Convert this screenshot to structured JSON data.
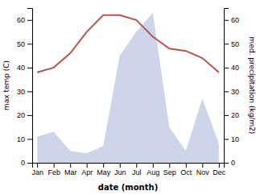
{
  "chart_data": {
    "type": "line",
    "xlabel": "date (month)",
    "ylabel": "max temp (C)",
    "y2label": "med. precipitation (kg/m2)",
    "categories": [
      "Jan",
      "Feb",
      "Mar",
      "Apr",
      "May",
      "Jun",
      "Jul",
      "Aug",
      "Sep",
      "Oct",
      "Nov",
      "Dec"
    ],
    "series": [
      {
        "type": "area",
        "axis": "y2",
        "color": "#c6d0e8",
        "values": [
          11,
          13,
          5,
          4,
          7,
          45,
          55,
          63,
          15,
          5,
          27,
          8
        ]
      },
      {
        "type": "line",
        "color": "#c0504d",
        "values": [
          38,
          40,
          46,
          55,
          62,
          62,
          60,
          53,
          48,
          47,
          44,
          38
        ]
      }
    ],
    "ylim": [
      0,
      65
    ],
    "yticks": [
      0,
      10,
      20,
      30,
      40,
      50,
      60
    ],
    "y2lim": [
      0,
      65
    ],
    "y2ticks": [
      0,
      10,
      20,
      30,
      40,
      50,
      60
    ],
    "grid": false
  }
}
